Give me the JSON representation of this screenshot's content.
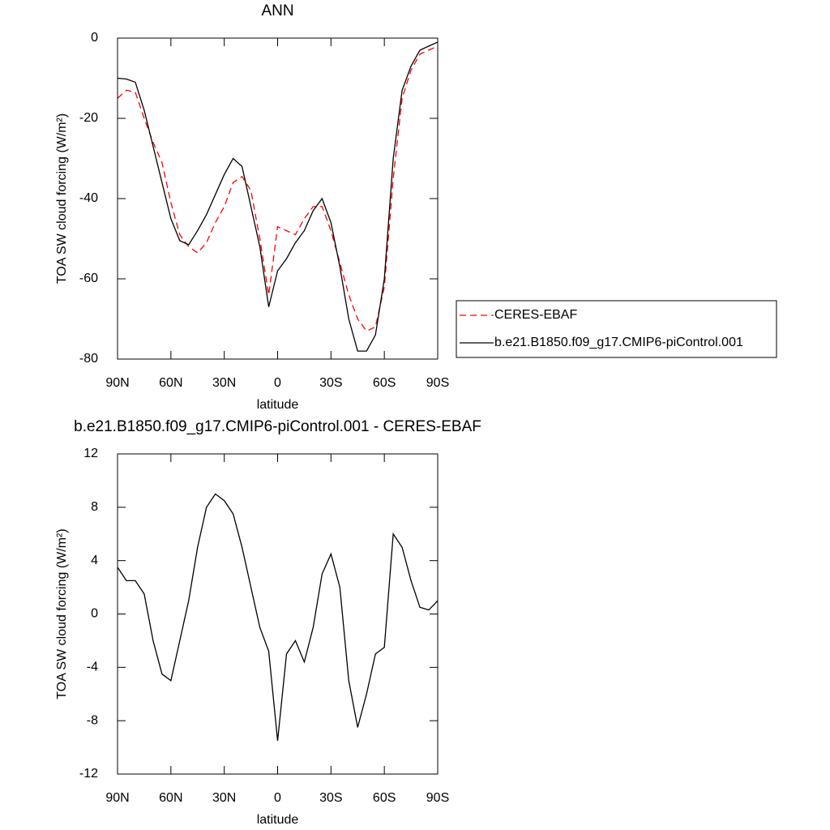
{
  "chart_data": [
    {
      "type": "line",
      "title": "ANN",
      "xlabel": "latitude",
      "ylabel": "TOA SW cloud forcing (W/m²)",
      "x": [
        90,
        85,
        80,
        75,
        70,
        65,
        60,
        55,
        50,
        45,
        40,
        35,
        30,
        25,
        20,
        15,
        10,
        5,
        0,
        -5,
        -10,
        -15,
        -20,
        -25,
        -30,
        -35,
        -40,
        -45,
        -50,
        -55,
        -60,
        -65,
        -70,
        -75,
        -80,
        -85,
        -90
      ],
      "series": [
        {
          "name": "CERES-EBAF",
          "color": "#ff0000",
          "line_style": "dashed",
          "values": [
            -15,
            -13,
            -13.5,
            -20,
            -26,
            -31,
            -41,
            -49,
            -52,
            -53.5,
            -51,
            -46,
            -42,
            -36,
            -34.5,
            -38,
            -50,
            -64,
            -47,
            -48,
            -49,
            -45,
            -42,
            -42,
            -48,
            -56,
            -64,
            -70,
            -73,
            -72,
            -62,
            -35,
            -15,
            -8,
            -4,
            -3,
            -2
          ]
        },
        {
          "name": "b.e21.B1850.f09_g17.CMIP6-piControl.001",
          "color": "#000000",
          "line_style": "solid",
          "values": [
            -10,
            -10.2,
            -11,
            -18,
            -27,
            -36,
            -45,
            -50.5,
            -51.5,
            -48,
            -44,
            -39,
            -34,
            -30,
            -32,
            -42,
            -52,
            -67,
            -58,
            -55,
            -51,
            -48,
            -43,
            -40,
            -46,
            -57,
            -70,
            -78,
            -78,
            -74,
            -60,
            -30,
            -13,
            -7,
            -3,
            -2,
            -1
          ]
        }
      ],
      "xlim": [
        90,
        -90
      ],
      "xticks": [
        {
          "value": 90,
          "label": "90N"
        },
        {
          "value": 60,
          "label": "60N"
        },
        {
          "value": 30,
          "label": "30N"
        },
        0,
        {
          "value": -30,
          "label": "30S"
        },
        {
          "value": -60,
          "label": "60S"
        },
        {
          "value": -90,
          "label": "90S"
        }
      ],
      "ylim": [
        -80,
        0
      ],
      "yticks": [
        -80,
        -60,
        -40,
        -20,
        0
      ],
      "legend": "right"
    },
    {
      "type": "line",
      "title": "b.e21.B1850.f09_g17.CMIP6-piControl.001 - CERES-EBAF",
      "xlabel": "latitude",
      "ylabel": "TOA SW cloud forcing (W/m²)",
      "x": [
        90,
        85,
        80,
        75,
        70,
        65,
        60,
        55,
        50,
        45,
        40,
        35,
        30,
        25,
        20,
        15,
        10,
        5,
        0,
        -5,
        -10,
        -15,
        -20,
        -25,
        -30,
        -35,
        -40,
        -45,
        -50,
        -55,
        -60,
        -65,
        -70,
        -75,
        -80,
        -85,
        -90
      ],
      "series": [
        {
          "color": "#000000",
          "line_style": "solid",
          "values": [
            3.5,
            2.5,
            2.5,
            1.5,
            -2,
            -4.5,
            -5,
            -2,
            1,
            5,
            8,
            9,
            8.5,
            7.5,
            5,
            2,
            -1,
            -2.8,
            -9.5,
            -3,
            -2,
            -3.6,
            -1,
            3,
            4.5,
            2,
            -5,
            -8.5,
            -6,
            -3,
            -2.5,
            6,
            5,
            2.5,
            0.5,
            0.3,
            1
          ]
        }
      ],
      "xlim": [
        90,
        -90
      ],
      "xticks": [
        {
          "value": 90,
          "label": "90N"
        },
        {
          "value": 60,
          "label": "60N"
        },
        {
          "value": 30,
          "label": "30N"
        },
        0,
        {
          "value": -30,
          "label": "30S"
        },
        {
          "value": -60,
          "label": "60S"
        },
        {
          "value": -90,
          "label": "90S"
        }
      ],
      "ylim": [
        -12,
        12
      ],
      "yticks": [
        -12,
        -8,
        -4,
        0,
        4,
        8,
        12
      ]
    }
  ]
}
